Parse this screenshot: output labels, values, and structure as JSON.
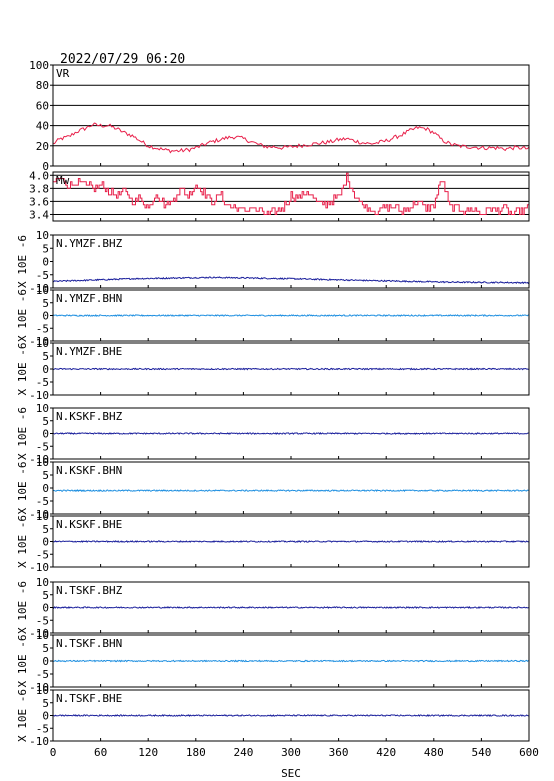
{
  "timestamp": "2022/07/29 06:20",
  "chart_data": {
    "type": "line",
    "xlabel": "SEC",
    "xlim": [
      0,
      600
    ],
    "xticks": [
      0,
      60,
      120,
      180,
      240,
      300,
      360,
      420,
      480,
      540,
      600
    ],
    "colors": {
      "vr_line": "#e8204a",
      "dark_blue": "#1a1f9c",
      "light_blue": "#1e8fe0",
      "frame": "#000000",
      "grid": "#000000"
    },
    "panels": [
      {
        "kind": "vr",
        "label": "VR",
        "ylim": [
          0,
          100
        ],
        "yticks": [
          0,
          20,
          40,
          60,
          80,
          100
        ],
        "grid": true,
        "series": {
          "x": [
            0,
            10,
            20,
            30,
            40,
            50,
            60,
            70,
            80,
            90,
            100,
            110,
            120,
            130,
            140,
            150,
            160,
            170,
            180,
            190,
            200,
            210,
            220,
            230,
            240,
            250,
            260,
            270,
            280,
            290,
            300,
            310,
            320,
            330,
            340,
            350,
            360,
            370,
            380,
            390,
            400,
            410,
            420,
            430,
            440,
            450,
            460,
            470,
            480,
            490,
            500,
            510,
            520,
            530,
            540,
            550,
            560,
            570,
            580,
            590,
            600
          ],
          "y": [
            22,
            27,
            29,
            34,
            37,
            41,
            40,
            40,
            37,
            33,
            30,
            25,
            20,
            18,
            16,
            15,
            15,
            16,
            18,
            21,
            24,
            26,
            28,
            29,
            27,
            24,
            21,
            19,
            19,
            18,
            19,
            20,
            21,
            22,
            23,
            24,
            26,
            27,
            25,
            23,
            22,
            23,
            25,
            28,
            31,
            35,
            38,
            37,
            33,
            26,
            22,
            20,
            19,
            19,
            18,
            18,
            18,
            17,
            18,
            18,
            17
          ]
        }
      },
      {
        "kind": "mw",
        "label": "Mw",
        "ylim": [
          3.3,
          4.05
        ],
        "yticks": [
          3.4,
          3.6,
          3.8,
          4.0
        ],
        "ytick_labels": [
          "3.4",
          "3.6",
          "3.8",
          "4.0"
        ],
        "grid": true,
        "series": {
          "x": [
            0,
            10,
            20,
            30,
            40,
            50,
            60,
            70,
            80,
            90,
            100,
            110,
            120,
            130,
            140,
            150,
            160,
            170,
            180,
            190,
            200,
            210,
            220,
            230,
            240,
            250,
            260,
            270,
            280,
            290,
            300,
            310,
            320,
            330,
            340,
            350,
            360,
            370,
            380,
            390,
            400,
            410,
            420,
            430,
            440,
            450,
            460,
            470,
            480,
            490,
            500,
            510,
            520,
            530,
            540,
            550,
            560,
            570,
            580,
            590,
            600
          ],
          "y": [
            3.9,
            3.95,
            3.85,
            3.9,
            3.85,
            3.8,
            3.85,
            3.75,
            3.7,
            3.75,
            3.6,
            3.65,
            3.5,
            3.75,
            3.55,
            3.6,
            3.8,
            3.7,
            3.85,
            3.75,
            3.6,
            3.7,
            3.55,
            3.5,
            3.45,
            3.5,
            3.45,
            3.4,
            3.45,
            3.5,
            3.7,
            3.65,
            3.75,
            3.6,
            3.55,
            3.6,
            3.65,
            4.0,
            3.7,
            3.55,
            3.5,
            3.45,
            3.5,
            3.5,
            3.45,
            3.5,
            3.6,
            3.5,
            3.55,
            3.95,
            3.5,
            3.5,
            3.45,
            3.5,
            3.4,
            3.5,
            3.45,
            3.5,
            3.4,
            3.45,
            3.5
          ]
        }
      },
      {
        "kind": "wave",
        "label": "N.YMZF.BHZ",
        "ylabel": "X 10E -6",
        "ylim": [
          -10,
          10
        ],
        "yticks": [
          -10,
          -5,
          0,
          5,
          10
        ],
        "series": {
          "x": [
            0,
            100,
            200,
            300,
            400,
            500,
            600
          ],
          "y": [
            -7.5,
            -6.5,
            -6.0,
            -6.5,
            -7.2,
            -7.8,
            -8.0
          ]
        },
        "color_key": "dark_blue"
      },
      {
        "kind": "wave",
        "label": "N.YMZF.BHN",
        "ylabel": "X 10E -6",
        "ylim": [
          -10,
          10
        ],
        "yticks": [
          -10,
          -5,
          0,
          5,
          10
        ],
        "series": {
          "x": [
            0,
            600
          ],
          "y": [
            0,
            0
          ]
        },
        "color_key": "light_blue"
      },
      {
        "kind": "wave",
        "label": "N.YMZF.BHE",
        "ylabel": "X 10E -6",
        "ylim": [
          -10,
          10
        ],
        "yticks": [
          -10,
          -5,
          0,
          5,
          10
        ],
        "series": {
          "x": [
            0,
            600
          ],
          "y": [
            0,
            0
          ]
        },
        "color_key": "dark_blue"
      },
      {
        "kind": "wave",
        "label": "N.KSKF.BHZ",
        "ylabel": "X 10E -6",
        "ylim": [
          -10,
          10
        ],
        "yticks": [
          -10,
          -5,
          0,
          5,
          10
        ],
        "series": {
          "x": [
            0,
            600
          ],
          "y": [
            0,
            0
          ]
        },
        "color_key": "dark_blue"
      },
      {
        "kind": "wave",
        "label": "N.KSKF.BHN",
        "ylabel": "X 10E -6",
        "ylim": [
          -10,
          10
        ],
        "yticks": [
          -10,
          -5,
          0,
          5,
          10
        ],
        "series": {
          "x": [
            0,
            600
          ],
          "y": [
            -1,
            -1
          ]
        },
        "color_key": "light_blue"
      },
      {
        "kind": "wave",
        "label": "N.KSKF.BHE",
        "ylabel": "X 10E -6",
        "ylim": [
          -10,
          10
        ],
        "yticks": [
          -10,
          -5,
          0,
          5,
          10
        ],
        "series": {
          "x": [
            0,
            600
          ],
          "y": [
            0,
            0
          ]
        },
        "color_key": "dark_blue"
      },
      {
        "kind": "wave",
        "label": "N.TSKF.BHZ",
        "ylabel": "X 10E -6",
        "ylim": [
          -10,
          10
        ],
        "yticks": [
          -10,
          -5,
          0,
          5,
          10
        ],
        "series": {
          "x": [
            0,
            600
          ],
          "y": [
            0,
            0
          ]
        },
        "color_key": "dark_blue"
      },
      {
        "kind": "wave",
        "label": "N.TSKF.BHN",
        "ylabel": "X 10E -6",
        "ylim": [
          -10,
          10
        ],
        "yticks": [
          -10,
          -5,
          0,
          5,
          10
        ],
        "series": {
          "x": [
            0,
            600
          ],
          "y": [
            0,
            0
          ]
        },
        "color_key": "light_blue"
      },
      {
        "kind": "wave",
        "label": "N.TSKF.BHE",
        "ylabel": "X 10E -6",
        "ylim": [
          -10,
          10
        ],
        "yticks": [
          -10,
          -5,
          0,
          5,
          10
        ],
        "series": {
          "x": [
            0,
            600
          ],
          "y": [
            0,
            0
          ]
        },
        "color_key": "dark_blue"
      }
    ]
  }
}
